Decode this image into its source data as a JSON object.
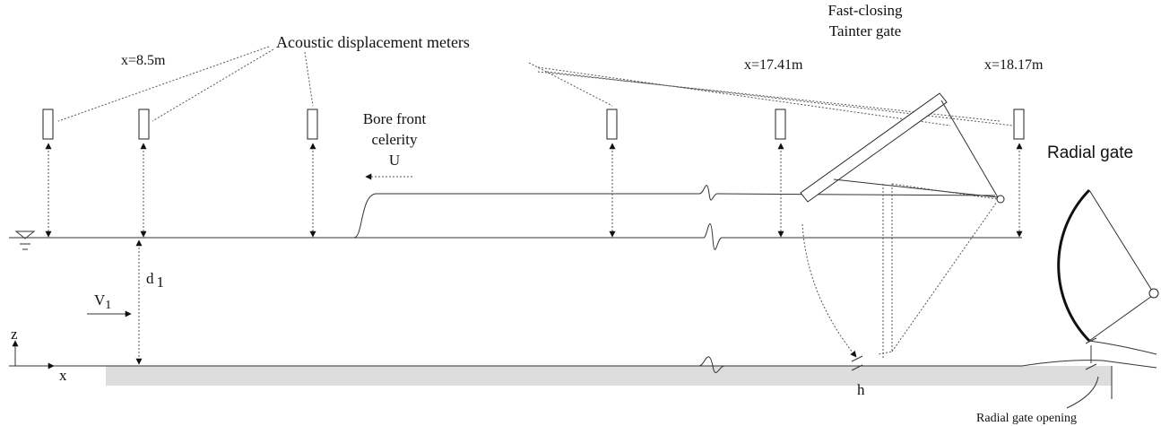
{
  "labels": {
    "meters": "Acoustic displacement meters",
    "x1": "x=8.5m",
    "x2": "x=17.41m",
    "x3": "x=18.17m",
    "tainter1": "Fast-closing",
    "tainter2": "Tainter gate",
    "bore1": "Bore front",
    "bore2": "celerity",
    "bore3": "U",
    "radial": "Radial gate",
    "depth": "d",
    "depth_sub": "1",
    "velocity": "V",
    "velocity_sub": "1",
    "z": "z",
    "x": "x",
    "h": "h",
    "opening": "Radial gate opening"
  }
}
